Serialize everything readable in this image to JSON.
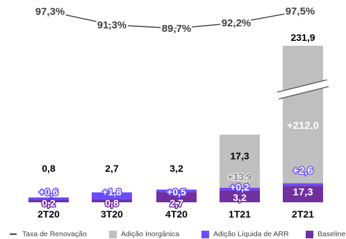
{
  "chart_data": {
    "type": "bar",
    "stacked": true,
    "categories": [
      "2T20",
      "3T20",
      "4T20",
      "1T21",
      "2T21"
    ],
    "totals": [
      "0,8",
      "2,7",
      "3,2",
      "17,3",
      "231,9"
    ],
    "renewal_rate": {
      "name": "Taxa de Renovação",
      "values": [
        97.3,
        91.3,
        89.7,
        92.2,
        97.5
      ],
      "labels": [
        "97,3%",
        "91,3%",
        "89,7%",
        "92,2%",
        "97,5%"
      ]
    },
    "series": [
      {
        "name": "Baseline",
        "color": "#7030a0",
        "values": [
          0.2,
          0.8,
          2.7,
          3.2,
          17.3
        ],
        "labels": [
          "0,2",
          "0,8",
          "2,7",
          "3,2",
          "17,3"
        ]
      },
      {
        "name": "Adição Líquida de ARR",
        "color": "#6a4cff",
        "values": [
          0.6,
          1.8,
          0.5,
          0.2,
          2.6
        ],
        "labels": [
          "+0,6",
          "+1,8",
          "+0,5",
          "+0,2",
          "+2,6"
        ]
      },
      {
        "name": "Adição Inorgânica",
        "color": "#bfbfbf",
        "values": [
          0,
          0,
          0,
          13.9,
          212.0
        ],
        "labels": [
          "",
          "",
          "",
          "+13,9",
          "+212,0"
        ]
      }
    ],
    "axis_break": true,
    "legend_position": "bottom"
  },
  "legend": [
    {
      "label": "Taxa de Renovação",
      "color": "#404040",
      "kind": "line"
    },
    {
      "label": "Adição Inorgânica",
      "color": "#bfbfbf",
      "kind": "box"
    },
    {
      "label": "Adição Líquida de ARR",
      "color": "#6a4cff",
      "kind": "box"
    },
    {
      "label": "Baseline",
      "color": "#7030a0",
      "kind": "box"
    }
  ]
}
